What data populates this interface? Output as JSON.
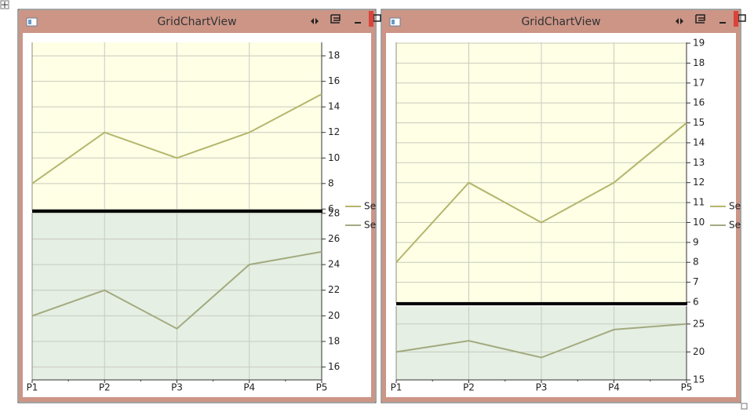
{
  "chart_data": [
    {
      "type": "line",
      "title": "GridChartView",
      "categories": [
        "P1",
        "P2",
        "P3",
        "P4",
        "P5"
      ],
      "grid": true,
      "panes": [
        {
          "ylim": [
            5.9,
            19.05
          ],
          "yticks": [
            6,
            8,
            10,
            12,
            14,
            16,
            18
          ],
          "background": "#ffffe6",
          "series": [
            {
              "name": "Se",
              "color": "#b3b66c",
              "values": [
                8,
                12,
                10,
                12,
                15
              ]
            }
          ]
        },
        {
          "ylim": [
            15,
            28.05
          ],
          "yticks": [
            16,
            18,
            20,
            22,
            24,
            26,
            28
          ],
          "background": "#e5efe3",
          "series": [
            {
              "name": "Se",
              "color": "#a3aa80",
              "values": [
                20,
                22,
                19,
                24,
                25
              ]
            }
          ]
        }
      ]
    },
    {
      "type": "line",
      "title": "GridChartView",
      "categories": [
        "P1",
        "P2",
        "P3",
        "P4",
        "P5"
      ],
      "grid": true,
      "panes": [
        {
          "ylim": [
            5.96,
            19.04
          ],
          "yticks": [
            6,
            7,
            8,
            9,
            10,
            11,
            12,
            13,
            14,
            15,
            16,
            17,
            18,
            19
          ],
          "background": "#ffffe6",
          "series": [
            {
              "name": "Se",
              "color": "#b3b66c",
              "values": [
                8,
                12,
                10,
                12,
                15
              ]
            }
          ]
        },
        {
          "ylim": [
            15,
            28.2
          ],
          "yticks": [
            15,
            20,
            25
          ],
          "background": "#e5efe3",
          "series": [
            {
              "name": "Se",
              "color": "#a3aa80",
              "values": [
                20,
                22,
                19,
                24,
                25
              ]
            }
          ]
        }
      ]
    }
  ]
}
